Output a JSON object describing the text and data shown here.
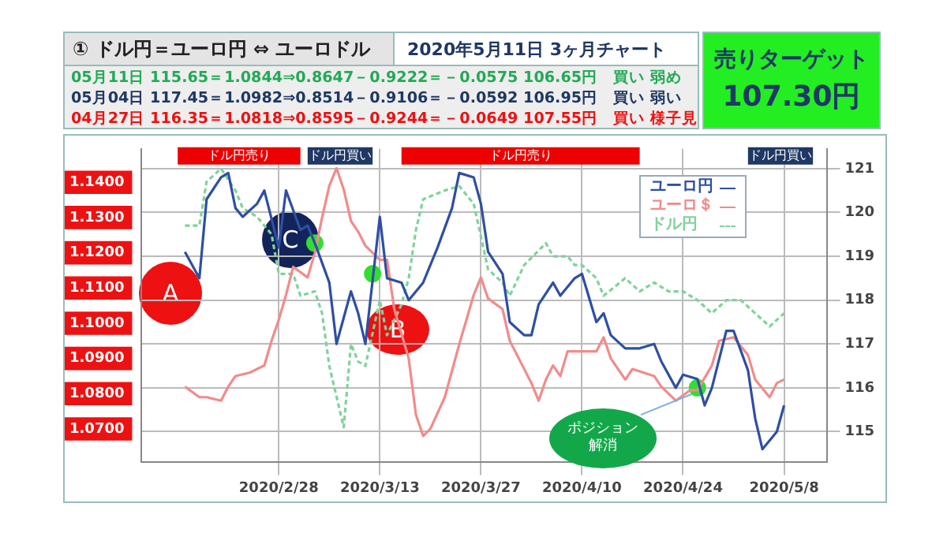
{
  "chart_data": {
    "type": "line",
    "title": "① ドル円＝ユーロ円 ⇔ ユーロドル",
    "subtitle": "2020年5月11日  3ヶ月チャート",
    "annotations": [
      "05月11日 115.65＝1.0844⇒0.8647－0.9222＝－0.0575  106.65円　買い  弱め",
      "05月04日 117.45＝1.0982⇒0.8514－0.9106＝－0.0592  106.95円　買い  弱い",
      "04月27日 116.35＝1.0818⇒0.8595－0.9244＝－0.0649  107.55円　買い  様子見",
      "売りターゲット",
      "107.30円",
      "A",
      "B",
      "C",
      "ポジション解消"
    ],
    "xlim": [
      "2020-02-09",
      "2020-05-14"
    ],
    "xticks": [
      {
        "value": "2020-02-28",
        "label": "2020/2/28"
      },
      {
        "value": "2020-03-13",
        "label": "2020/3/13"
      },
      {
        "value": "2020-03-27",
        "label": "2020/3/27"
      },
      {
        "value": "2020-04-10",
        "label": "2020/4/10"
      },
      {
        "value": "2020-04-24",
        "label": "2020/4/24"
      },
      {
        "value": "2020-05-08",
        "label": "2020/5/8"
      }
    ],
    "ylim": [
      1.0605,
      1.1495
    ],
    "yticks": [
      {
        "value": 1.07,
        "label": "1.0700"
      },
      {
        "value": 1.08,
        "label": "1.0800"
      },
      {
        "value": 1.09,
        "label": "1.0900"
      },
      {
        "value": 1.1,
        "label": "1.1000"
      },
      {
        "value": 1.11,
        "label": "1.1100"
      },
      {
        "value": 1.12,
        "label": "1.1200"
      },
      {
        "value": 1.13,
        "label": "1.1300"
      },
      {
        "value": 1.14,
        "label": "1.1400"
      }
    ],
    "y2lim": [
      114.3,
      121.45
    ],
    "y2ticks": [
      115,
      116,
      117,
      118,
      119,
      120,
      121
    ],
    "grid": true,
    "legend": "top right",
    "bands": [
      {
        "axis": "x",
        "from": "2020-02-14",
        "to": "2020-03-02",
        "label": "ドル円売り",
        "color": "#ee0000"
      },
      {
        "axis": "x",
        "from": "2020-03-03",
        "to": "2020-03-12",
        "label": "ドル円買い",
        "color": "#1f3864"
      },
      {
        "axis": "x",
        "from": "2020-03-16",
        "to": "2020-04-18",
        "label": "ドル円売り",
        "color": "#ee0000"
      },
      {
        "axis": "x",
        "from": "2020-05-03",
        "to": "2020-05-12",
        "label": "ドル円買い",
        "color": "#1f3864"
      }
    ],
    "series": [
      {
        "name": "ユーロ円",
        "color": "#2e4fa3",
        "axis": "y2",
        "line_style": "solid",
        "x": [
          "2020-02-15",
          "2020-02-17",
          "2020-02-18",
          "2020-02-20",
          "2020-02-21",
          "2020-02-22",
          "2020-02-23",
          "2020-02-25",
          "2020-02-26",
          "2020-02-28",
          "2020-02-29",
          "2020-03-02",
          "2020-03-03",
          "2020-03-04",
          "2020-03-06",
          "2020-03-07",
          "2020-03-09",
          "2020-03-10",
          "2020-03-11",
          "2020-03-13",
          "2020-03-14",
          "2020-03-16",
          "2020-03-17",
          "2020-03-19",
          "2020-03-21",
          "2020-03-23",
          "2020-03-24",
          "2020-03-26",
          "2020-03-27",
          "2020-03-28",
          "2020-03-30",
          "2020-03-31",
          "2020-04-02",
          "2020-04-03",
          "2020-04-04",
          "2020-04-06",
          "2020-04-07",
          "2020-04-09",
          "2020-04-10",
          "2020-04-12",
          "2020-04-13",
          "2020-04-14",
          "2020-04-16",
          "2020-04-17",
          "2020-04-18",
          "2020-04-20",
          "2020-04-21",
          "2020-04-23",
          "2020-04-24",
          "2020-04-26",
          "2020-04-27",
          "2020-04-28",
          "2020-04-30",
          "2020-05-01",
          "2020-05-03",
          "2020-05-04",
          "2020-05-05",
          "2020-05-07",
          "2020-05-08"
        ],
        "values": [
          119.1,
          118.5,
          120.3,
          120.8,
          120.9,
          120.1,
          119.9,
          120.2,
          120.5,
          119.2,
          120.5,
          119.6,
          119.7,
          119.3,
          118.4,
          117.0,
          118.2,
          117.7,
          117.0,
          119.9,
          118.5,
          118.4,
          118.0,
          118.4,
          119.2,
          120.1,
          120.9,
          120.8,
          120.2,
          119.1,
          118.6,
          117.5,
          117.2,
          117.2,
          117.9,
          118.4,
          118.1,
          118.5,
          118.6,
          117.5,
          117.7,
          117.2,
          116.9,
          116.9,
          116.9,
          117.0,
          116.6,
          116.0,
          116.3,
          116.2,
          115.6,
          116.0,
          117.3,
          117.3,
          116.4,
          115.3,
          114.6,
          115.0,
          115.6
        ]
      },
      {
        "name": "ユーロ＄",
        "color": "#f28b8b",
        "axis": "y",
        "line_style": "solid",
        "x": [
          "2020-02-15",
          "2020-02-17",
          "2020-02-18",
          "2020-02-20",
          "2020-02-21",
          "2020-02-22",
          "2020-02-24",
          "2020-02-26",
          "2020-02-27",
          "2020-02-28",
          "2020-02-29",
          "2020-03-01",
          "2020-03-03",
          "2020-03-04",
          "2020-03-05",
          "2020-03-06",
          "2020-03-07",
          "2020-03-08",
          "2020-03-09",
          "2020-03-10",
          "2020-03-11",
          "2020-03-13",
          "2020-03-14",
          "2020-03-15",
          "2020-03-17",
          "2020-03-18",
          "2020-03-19",
          "2020-03-20",
          "2020-03-22",
          "2020-03-24",
          "2020-03-26",
          "2020-03-27",
          "2020-03-28",
          "2020-03-30",
          "2020-03-31",
          "2020-04-01",
          "2020-04-03",
          "2020-04-04",
          "2020-04-05",
          "2020-04-06",
          "2020-04-07",
          "2020-04-08",
          "2020-04-10",
          "2020-04-12",
          "2020-04-13",
          "2020-04-14",
          "2020-04-16",
          "2020-04-17",
          "2020-04-20",
          "2020-04-21",
          "2020-04-23",
          "2020-04-25",
          "2020-04-26",
          "2020-04-28",
          "2020-04-29",
          "2020-05-01",
          "2020-05-03",
          "2020-05-04",
          "2020-05-06",
          "2020-05-07",
          "2020-05-08"
        ],
        "values": [
          1.082,
          1.079,
          1.079,
          1.078,
          1.082,
          1.085,
          1.086,
          1.088,
          1.095,
          1.101,
          1.108,
          1.116,
          1.113,
          1.12,
          1.13,
          1.139,
          1.144,
          1.138,
          1.129,
          1.126,
          1.122,
          1.118,
          1.118,
          1.104,
          1.09,
          1.074,
          1.068,
          1.07,
          1.079,
          1.094,
          1.108,
          1.113,
          1.107,
          1.104,
          1.095,
          1.091,
          1.083,
          1.078,
          1.084,
          1.088,
          1.085,
          1.092,
          1.092,
          1.092,
          1.096,
          1.09,
          1.084,
          1.087,
          1.085,
          1.082,
          1.078,
          1.081,
          1.081,
          1.088,
          1.095,
          1.096,
          1.091,
          1.084,
          1.079,
          1.083,
          1.084
        ]
      },
      {
        "name": "ドル円",
        "color": "#7fd39a",
        "axis": "y2",
        "line_style": "dashed",
        "x": [
          "2020-02-15",
          "2020-02-17",
          "2020-02-18",
          "2020-02-20",
          "2020-02-22",
          "2020-02-23",
          "2020-02-25",
          "2020-02-27",
          "2020-02-28",
          "2020-03-01",
          "2020-03-02",
          "2020-03-04",
          "2020-03-05",
          "2020-03-06",
          "2020-03-08",
          "2020-03-09",
          "2020-03-10",
          "2020-03-11",
          "2020-03-13",
          "2020-03-14",
          "2020-03-16",
          "2020-03-17",
          "2020-03-18",
          "2020-03-19",
          "2020-03-22",
          "2020-03-24",
          "2020-03-26",
          "2020-03-28",
          "2020-03-30",
          "2020-03-31",
          "2020-04-02",
          "2020-04-05",
          "2020-04-06",
          "2020-04-08",
          "2020-04-09",
          "2020-04-10",
          "2020-04-12",
          "2020-04-13",
          "2020-04-16",
          "2020-04-18",
          "2020-04-20",
          "2020-04-22",
          "2020-04-24",
          "2020-04-26",
          "2020-04-28",
          "2020-04-30",
          "2020-05-02",
          "2020-05-04",
          "2020-05-06",
          "2020-05-08"
        ],
        "values": [
          119.7,
          119.7,
          120.7,
          121.0,
          120.5,
          120.1,
          119.9,
          119.5,
          118.6,
          118.6,
          118.1,
          118.2,
          117.7,
          116.5,
          115.1,
          117.0,
          116.6,
          116.5,
          118.0,
          117.2,
          117.9,
          118.5,
          119.6,
          120.3,
          120.5,
          120.6,
          120.2,
          118.7,
          118.4,
          118.1,
          118.8,
          119.3,
          119.0,
          119.0,
          118.8,
          118.8,
          118.5,
          118.1,
          118.5,
          118.2,
          118.4,
          118.2,
          118.2,
          118.0,
          117.7,
          118.0,
          118.0,
          117.7,
          117.4,
          117.7
        ]
      },
      {
        "type": "scatter",
        "color": "#33dd33",
        "axis": "y2",
        "marker": "circle",
        "x": [
          "2020-03-04",
          "2020-03-12",
          "2020-04-26"
        ],
        "values": [
          119.3,
          118.6,
          116.0
        ]
      }
    ]
  }
}
